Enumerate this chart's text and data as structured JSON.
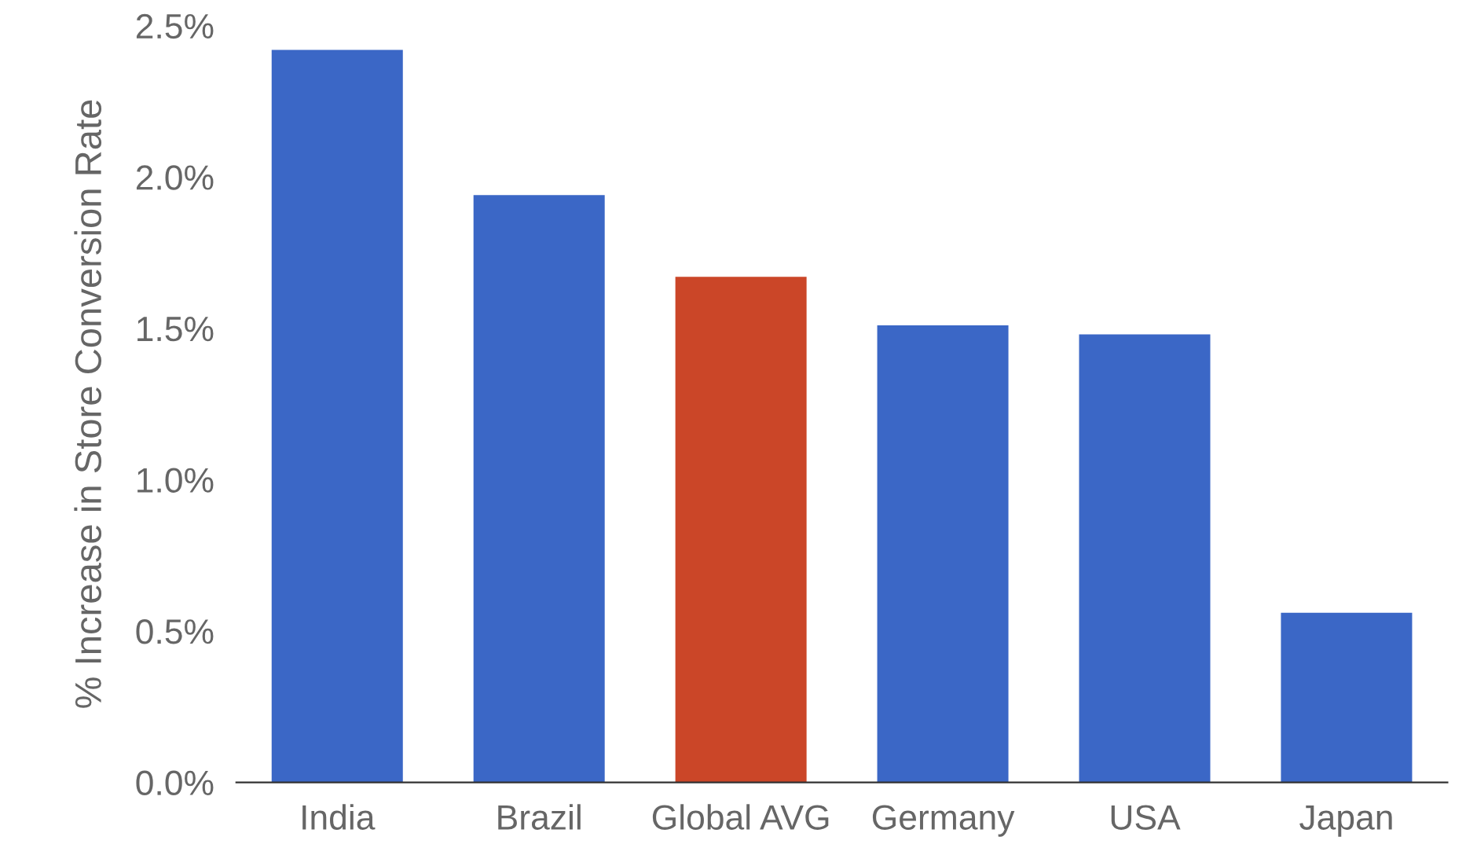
{
  "chart_data": {
    "type": "bar",
    "ylabel": "% Increase in Store Conversion Rate",
    "categories": [
      "India",
      "Brazil",
      "Global AVG",
      "Germany",
      "USA",
      "Japan"
    ],
    "values": [
      2.42,
      1.94,
      1.67,
      1.51,
      1.48,
      0.56
    ],
    "colors": [
      "#3b67c6",
      "#3b67c6",
      "#cb4628",
      "#3b67c6",
      "#3b67c6",
      "#3b67c6"
    ],
    "ylim": [
      0,
      2.5
    ],
    "yticks": [
      {
        "value": 0,
        "label": "0.0%"
      },
      {
        "value": 0.5,
        "label": "0.5%"
      },
      {
        "value": 1,
        "label": "1.0%"
      },
      {
        "value": 1.5,
        "label": "1.5%"
      },
      {
        "value": 2,
        "label": "2.0%"
      },
      {
        "value": 2.5,
        "label": "2.5%"
      }
    ],
    "grid": false
  }
}
